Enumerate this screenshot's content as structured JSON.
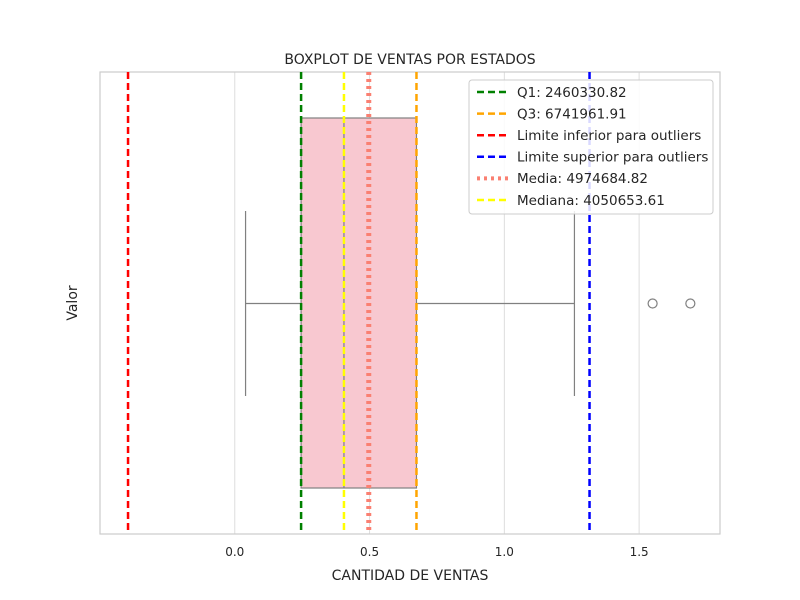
{
  "chart_data": {
    "type": "boxplot",
    "title": "BOXPLOT DE VENTAS POR ESTADOS",
    "xlabel": "CANTIDAD DE VENTAS",
    "ylabel": "Valor",
    "x_ticks": [
      "0.0",
      "0.5",
      "1.0",
      "1.5"
    ],
    "x_tick_values": [
      0.0,
      0.5,
      1.0,
      1.5
    ],
    "xlim": [
      -0.5,
      1.8
    ],
    "grid": true,
    "legend_position": "top-right",
    "box": {
      "whisker_low": 0.04,
      "q1": 0.246,
      "median": 0.405,
      "q3": 0.674,
      "whisker_high": 1.26,
      "outliers": [
        1.55,
        1.69
      ],
      "fill_color": "#f8c8d0",
      "edge_color": "#808080"
    },
    "reference_lines": [
      {
        "key": "q1",
        "label": "Q1: 2460330.82",
        "value": 0.246,
        "color": "#008000",
        "style": "dashed"
      },
      {
        "key": "q3",
        "label": "Q3: 6741961.91",
        "value": 0.674,
        "color": "#ffa500",
        "style": "dashed"
      },
      {
        "key": "lower",
        "label": "Limite inferior para outliers",
        "value": -0.396,
        "color": "#ff0000",
        "style": "dashed"
      },
      {
        "key": "upper",
        "label": "Limite superior para outliers",
        "value": 1.316,
        "color": "#0000ff",
        "style": "dashed"
      },
      {
        "key": "mean",
        "label": "Media: 4974684.82",
        "value": 0.497,
        "color": "#fa8072",
        "style": "dotted"
      },
      {
        "key": "median",
        "label": "Mediana: 4050653.61",
        "value": 0.405,
        "color": "#ffff00",
        "style": "dashed"
      }
    ]
  }
}
